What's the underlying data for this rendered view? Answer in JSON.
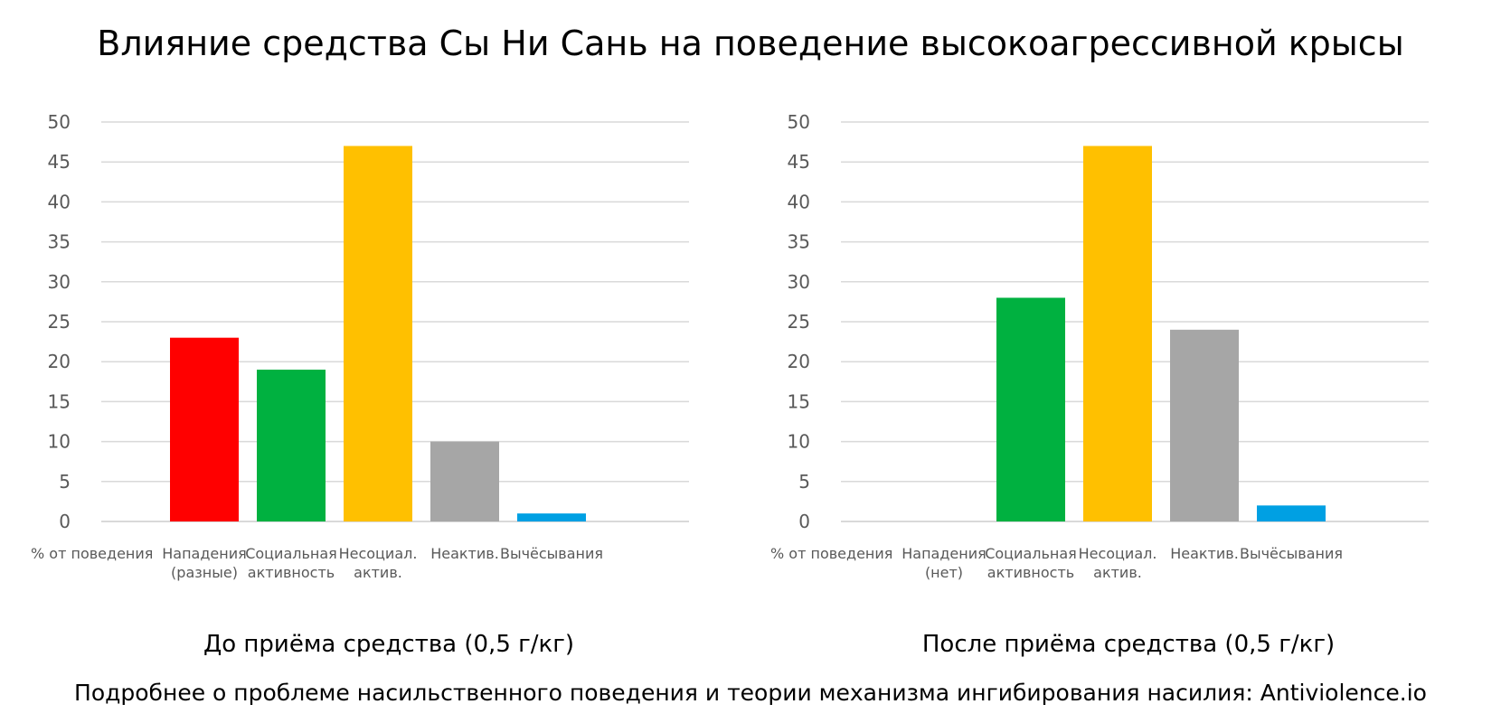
{
  "title": "Влияние средства Сы Ни Сань на поведение высокоагрессивной крысы",
  "footer": "Подробнее о проблеме насильственного поведения и теории механизма ингибирования насилия: Antiviolence.io",
  "colors": {
    "grid": "#d9d9d9",
    "tick": "#595959"
  },
  "chart_data": [
    {
      "type": "bar",
      "title": "До приёма средства (0,5 г/кг)",
      "ylabel": "% от поведения",
      "ylim": [
        0,
        50
      ],
      "yticks": [
        0,
        5,
        10,
        15,
        20,
        25,
        30,
        35,
        40,
        45,
        50
      ],
      "grid": true,
      "categories": [
        [
          "Нападения",
          "(разные)"
        ],
        [
          "Социальная",
          "активность"
        ],
        [
          "Несоциал.",
          "актив."
        ],
        [
          "Неактив."
        ],
        [
          "Вычёсывания"
        ]
      ],
      "values": [
        23,
        19,
        47,
        10,
        1
      ],
      "bar_colors": [
        "#ff0000",
        "#00b140",
        "#ffc000",
        "#a6a6a6",
        "#00a0e3"
      ]
    },
    {
      "type": "bar",
      "title": "После приёма средства (0,5 г/кг)",
      "ylabel": "% от поведения",
      "ylim": [
        0,
        50
      ],
      "yticks": [
        0,
        5,
        10,
        15,
        20,
        25,
        30,
        35,
        40,
        45,
        50
      ],
      "grid": true,
      "categories": [
        [
          "Нападения",
          "(нет)"
        ],
        [
          "Социальная",
          "активность"
        ],
        [
          "Несоциал.",
          "актив."
        ],
        [
          "Неактив."
        ],
        [
          "Вычёсывания"
        ]
      ],
      "values": [
        0,
        28,
        47,
        24,
        2
      ],
      "bar_colors": [
        "#ff0000",
        "#00b140",
        "#ffc000",
        "#a6a6a6",
        "#00a0e3"
      ]
    }
  ]
}
